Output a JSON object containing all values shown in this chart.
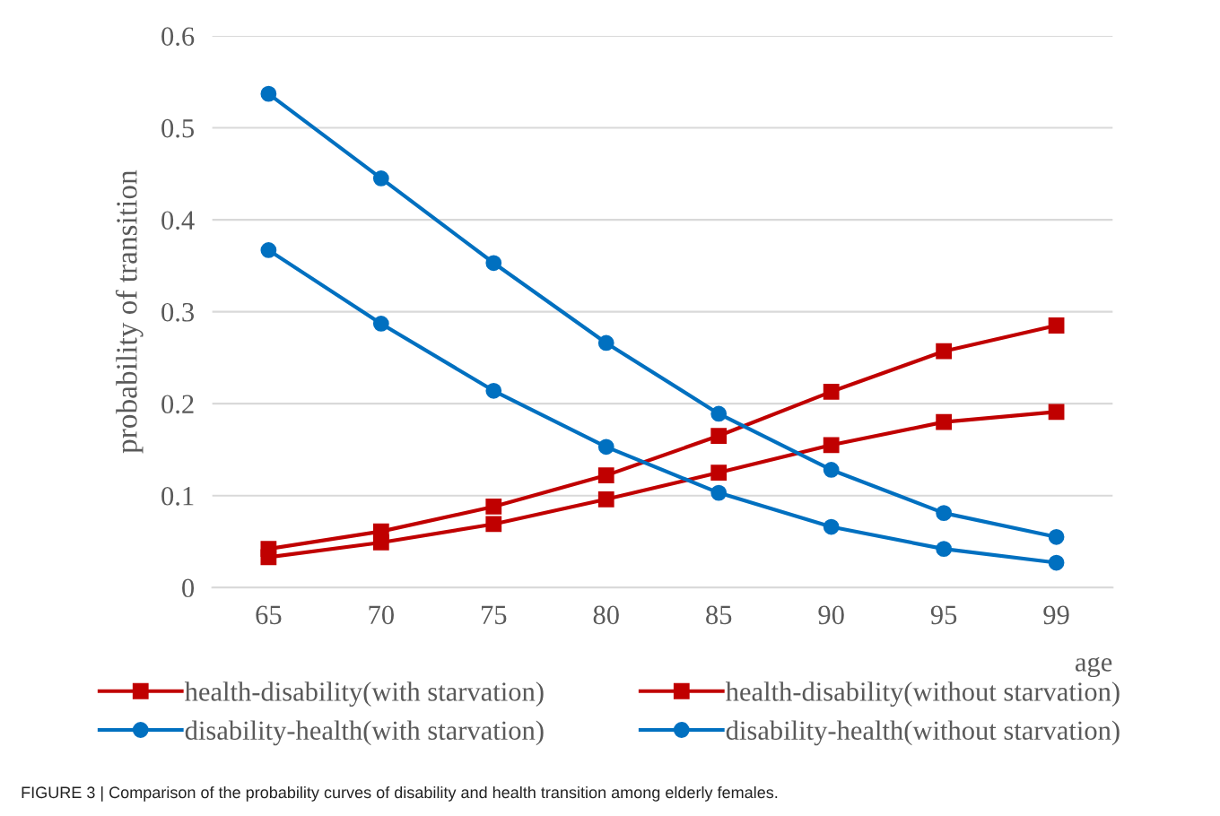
{
  "chart_data": {
    "type": "line",
    "xlabel": "age",
    "ylabel": "probability of transition",
    "categories": [
      "65",
      "70",
      "75",
      "80",
      "85",
      "90",
      "95",
      "99"
    ],
    "ylim": [
      0,
      0.6
    ],
    "yticks": [
      {
        "value": 0,
        "label": "0"
      },
      0.1,
      0.2,
      0.3,
      0.4,
      0.5,
      0.6
    ],
    "grid": "y",
    "legend": "bottom",
    "series": [
      {
        "name": "health-disability(with starvation)",
        "color": "#c00000",
        "marker": "square",
        "values": [
          0.042,
          0.061,
          0.088,
          0.122,
          0.165,
          0.213,
          0.257,
          0.285
        ]
      },
      {
        "name": "health-disability(without starvation)",
        "color": "#c00000",
        "marker": "square",
        "values": [
          0.033,
          0.049,
          0.069,
          0.096,
          0.125,
          0.155,
          0.18,
          0.191
        ]
      },
      {
        "name": "disability-health(with starvation)",
        "color": "#0070c0",
        "marker": "circle",
        "values": [
          0.537,
          0.445,
          0.353,
          0.266,
          0.189,
          0.128,
          0.081,
          0.055
        ]
      },
      {
        "name": "disability-health(without starvation)",
        "color": "#0070c0",
        "marker": "circle",
        "values": [
          0.367,
          0.287,
          0.214,
          0.153,
          0.103,
          0.066,
          0.042,
          0.027
        ]
      }
    ],
    "annotations": [
      "FIGURE 3 | Comparison of the probability curves of disability and health transition among elderly females."
    ]
  }
}
